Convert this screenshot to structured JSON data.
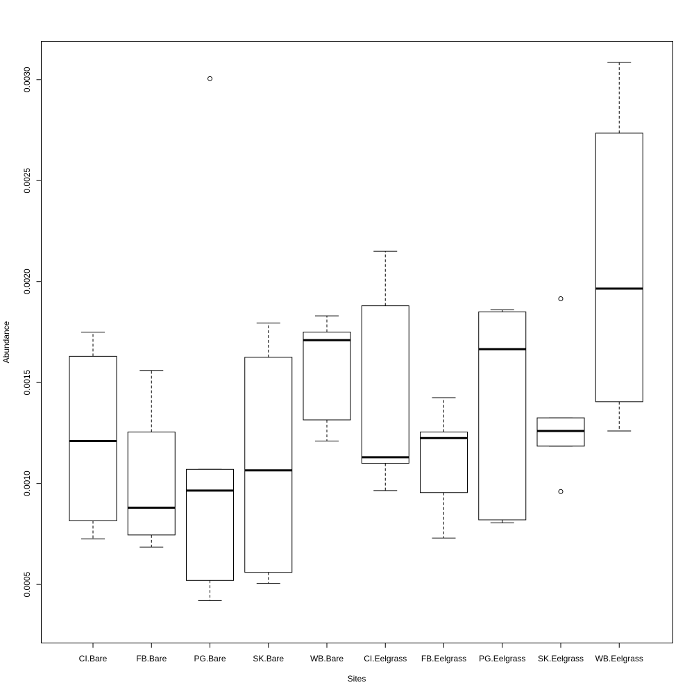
{
  "chart_data": {
    "type": "box",
    "xlabel": "Sites",
    "ylabel": "Abundance",
    "ylim": [
      0.00021,
      0.00319
    ],
    "y_ticks": [
      {
        "value": 0.0005,
        "label": "0.0005"
      },
      {
        "value": 0.001,
        "label": "0.0010"
      },
      {
        "value": 0.0015,
        "label": "0.0015"
      },
      {
        "value": 0.002,
        "label": "0.0020"
      },
      {
        "value": 0.0025,
        "label": "0.0025"
      },
      {
        "value": 0.003,
        "label": "0.0030"
      }
    ],
    "categories": [
      "CI.Bare",
      "FB.Bare",
      "PG.Bare",
      "SK.Bare",
      "WB.Bare",
      "CI.Eelgrass",
      "FB.Eelgrass",
      "PG.Eelgrass",
      "SK.Eelgrass",
      "WB.Eelgrass"
    ],
    "boxes": [
      {
        "whisker_low": 0.000725,
        "q1": 0.000815,
        "median": 0.00121,
        "q3": 0.00163,
        "whisker_high": 0.00175,
        "outliers": []
      },
      {
        "whisker_low": 0.000685,
        "q1": 0.000745,
        "median": 0.00088,
        "q3": 0.001255,
        "whisker_high": 0.00156,
        "outliers": []
      },
      {
        "whisker_low": 0.00042,
        "q1": 0.00052,
        "median": 0.000965,
        "q3": 0.00107,
        "whisker_high": 0.00107,
        "outliers": [
          0.003005
        ]
      },
      {
        "whisker_low": 0.000505,
        "q1": 0.00056,
        "median": 0.001065,
        "q3": 0.001625,
        "whisker_high": 0.001795,
        "outliers": []
      },
      {
        "whisker_low": 0.00121,
        "q1": 0.001315,
        "median": 0.00171,
        "q3": 0.00175,
        "whisker_high": 0.00183,
        "outliers": []
      },
      {
        "whisker_low": 0.000965,
        "q1": 0.0011,
        "median": 0.00113,
        "q3": 0.00188,
        "whisker_high": 0.00215,
        "outliers": []
      },
      {
        "whisker_low": 0.00073,
        "q1": 0.000955,
        "median": 0.001225,
        "q3": 0.001255,
        "whisker_high": 0.001425,
        "outliers": []
      },
      {
        "whisker_low": 0.000805,
        "q1": 0.00082,
        "median": 0.001665,
        "q3": 0.00185,
        "whisker_high": 0.00186,
        "outliers": []
      },
      {
        "whisker_low": 0.001185,
        "q1": 0.001185,
        "median": 0.00126,
        "q3": 0.001325,
        "whisker_high": 0.001325,
        "outliers": [
          0.001915,
          0.00096
        ]
      },
      {
        "whisker_low": 0.00126,
        "q1": 0.001405,
        "median": 0.001965,
        "q3": 0.002735,
        "whisker_high": 0.003085,
        "outliers": []
      }
    ]
  }
}
